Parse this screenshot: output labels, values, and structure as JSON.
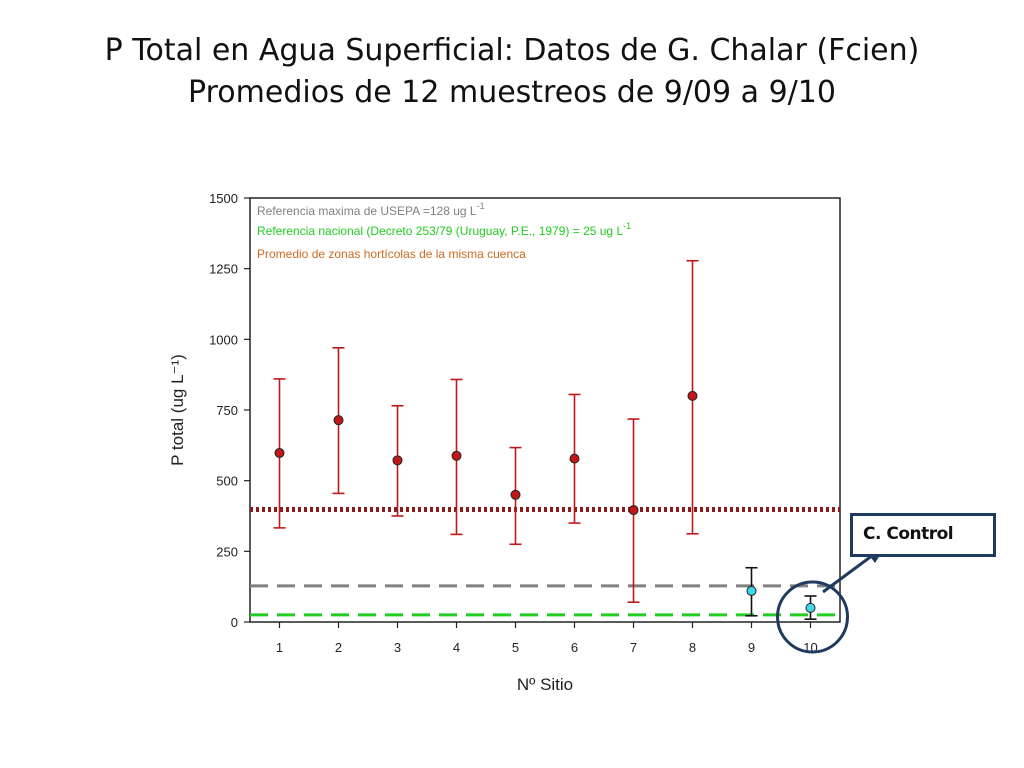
{
  "slide": {
    "title_line1": "P Total en Agua Superficial: Datos de G. Chalar (Fcien)",
    "title_line2": "Promedios de 12 muestreos de 9/09 a 9/10",
    "callout_label": "C. Control"
  },
  "colors": {
    "red_points": "#c01818",
    "cyan_points": "#40d8e8",
    "usepa_line": "#808080",
    "national_line": "#22cc22",
    "horticultural_line": "#8b1a1a",
    "callout": "#1f3a5f"
  },
  "chart_data": {
    "type": "scatter",
    "xlabel": "Nº Sitio",
    "ylabel": "P total (ug L⁻¹)",
    "x_ticks": [
      1,
      2,
      3,
      4,
      5,
      6,
      7,
      8,
      9,
      10
    ],
    "y_ticks": [
      0,
      250,
      500,
      750,
      1000,
      1250,
      1500
    ],
    "xlim": [
      0.5,
      10.5
    ],
    "ylim": [
      0,
      1500
    ],
    "grid": false,
    "legend_position": "top-left",
    "series": [
      {
        "color": "red",
        "x": [
          1,
          2,
          3,
          4,
          5,
          6,
          7,
          8
        ],
        "y": [
          598,
          714,
          572,
          588,
          450,
          578,
          396,
          800
        ],
        "err_high": [
          860,
          970,
          765,
          858,
          617,
          805,
          718,
          1278
        ],
        "err_low": [
          333,
          455,
          375,
          310,
          275,
          350,
          70,
          312
        ]
      },
      {
        "color": "cyan",
        "x": [
          9,
          10
        ],
        "y": [
          110,
          50
        ],
        "err_high": [
          192,
          92
        ],
        "err_low": [
          22,
          10
        ]
      }
    ],
    "reference_lines": [
      {
        "name": "Referencia maxima de USEPA =128 ug L-1",
        "y": 128,
        "color": "gray",
        "style": "dashed"
      },
      {
        "name": "Referencia nacional (Decreto 253/79 (Uruguay, P.E., 1979) = 25 ug L-1",
        "y": 25,
        "color": "green",
        "style": "dashed"
      },
      {
        "name": "Promedio de zonas hortícolas de la misma cuenca",
        "y": 398,
        "color": "darkred",
        "style": "dotted"
      }
    ],
    "legend": [
      {
        "text": "Referencia maxima de USEPA =128 ug L",
        "sup": "-1",
        "color": "#808080"
      },
      {
        "text": "Referencia nacional (Decreto 253/79 (Uruguay, P.E., 1979) = 25 ug L",
        "sup": "-1",
        "color": "#22cc22"
      },
      {
        "text": "Promedio de zonas hortícolas de la misma cuenca",
        "sup": "",
        "color": "#cc6a22"
      }
    ],
    "annotation": {
      "target_x": 10,
      "label": "C. Control"
    }
  }
}
